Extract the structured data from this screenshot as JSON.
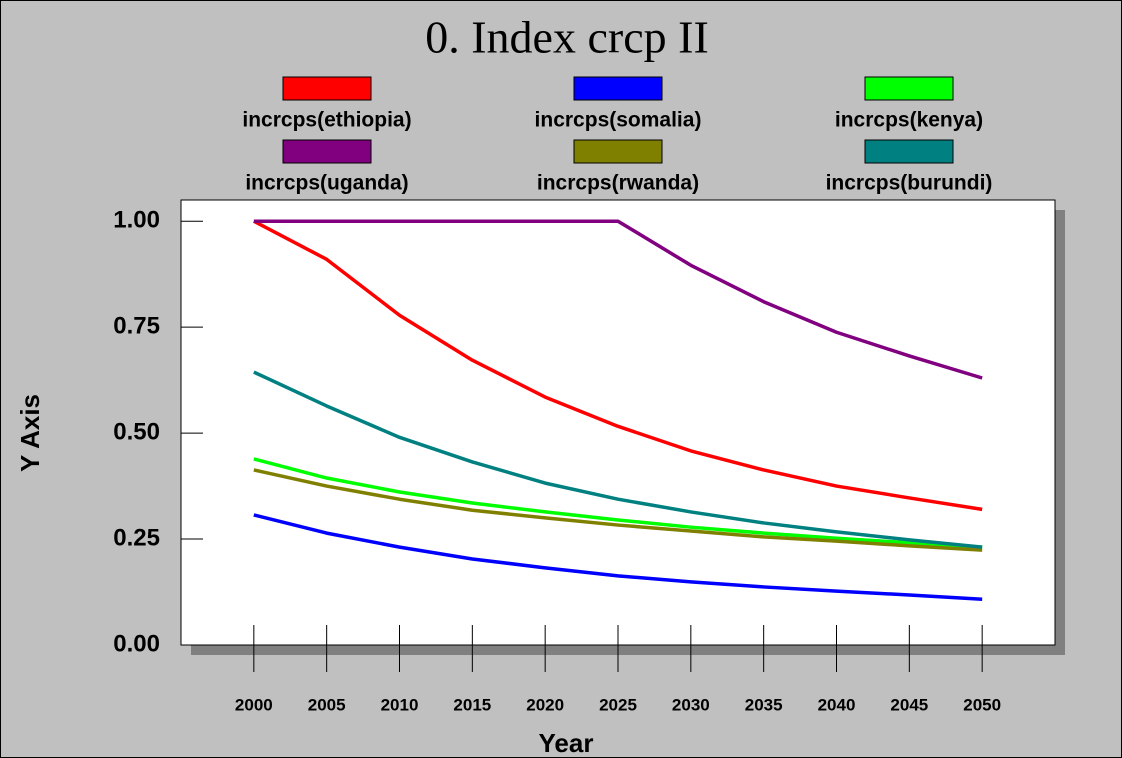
{
  "chart_data": {
    "type": "line",
    "title": "0.  Index crcp II",
    "x_label": "Year",
    "y_label": "Y Axis",
    "x": [
      2000,
      2005,
      2010,
      2015,
      2020,
      2025,
      2030,
      2035,
      2040,
      2045,
      2050
    ],
    "xlim": [
      1995,
      2055
    ],
    "xticks": [
      2000,
      2005,
      2010,
      2015,
      2020,
      2025,
      2030,
      2035,
      2040,
      2045,
      2050
    ],
    "ylim": [
      0,
      1.05
    ],
    "yticks": [
      {
        "value": 0,
        "label": "0.00"
      },
      {
        "value": 0.25,
        "label": "0.25"
      },
      {
        "value": 0.5,
        "label": "0.50"
      },
      {
        "value": 0.75,
        "label": "0.75"
      },
      {
        "value": 1,
        "label": "1.00"
      }
    ],
    "legend": "top",
    "series": [
      {
        "name": "incrcps(ethiopia)",
        "color": "#ff0000",
        "values": [
          1.0,
          0.91,
          0.778,
          0.672,
          0.585,
          0.516,
          0.458,
          0.413,
          0.375,
          0.347,
          0.32
        ]
      },
      {
        "name": "incrcps(somalia)",
        "color": "#0000ff",
        "values": [
          0.307,
          0.264,
          0.231,
          0.203,
          0.182,
          0.163,
          0.149,
          0.137,
          0.127,
          0.118,
          0.108
        ]
      },
      {
        "name": "incrcps(kenya)",
        "color": "#00ff00",
        "values": [
          0.439,
          0.394,
          0.361,
          0.335,
          0.314,
          0.295,
          0.278,
          0.264,
          0.252,
          0.241,
          0.231
        ]
      },
      {
        "name": "incrcps(uganda)",
        "color": "#800080",
        "values": [
          1.0,
          1.0,
          1.0,
          1.0,
          1.0,
          1.0,
          0.896,
          0.81,
          0.738,
          0.682,
          0.63
        ]
      },
      {
        "name": "incrcps(rwanda)",
        "color": "#808000",
        "values": [
          0.413,
          0.375,
          0.344,
          0.318,
          0.3,
          0.283,
          0.269,
          0.255,
          0.245,
          0.234,
          0.224
        ]
      },
      {
        "name": "incrcps(burundi)",
        "color": "#008080",
        "values": [
          0.644,
          0.564,
          0.49,
          0.432,
          0.382,
          0.344,
          0.314,
          0.288,
          0.267,
          0.248,
          0.231
        ]
      }
    ]
  }
}
